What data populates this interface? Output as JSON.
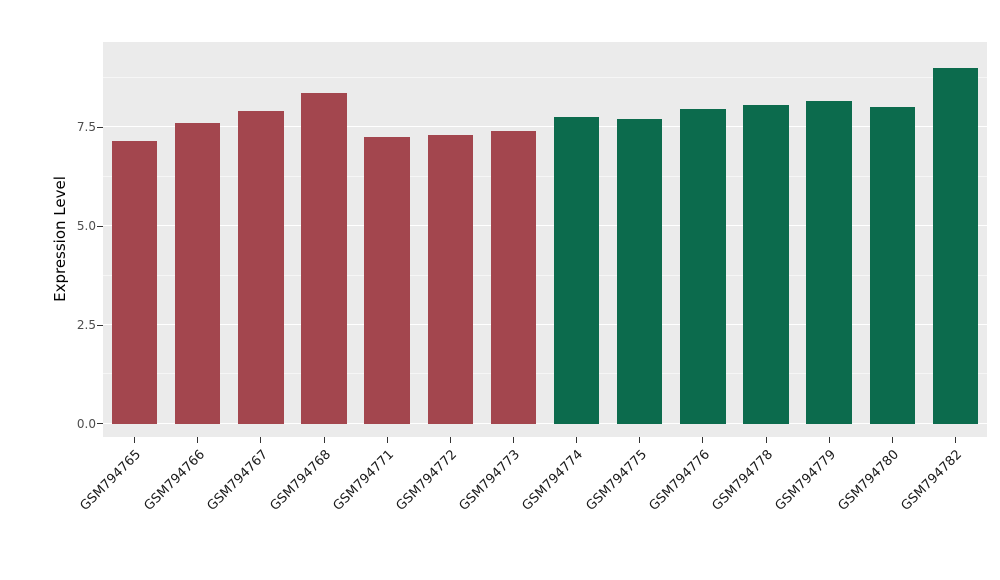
{
  "figure": {
    "background": "#FFFFFF",
    "panel_background": "#EBEBEB",
    "grid_color": "#FFFFFF"
  },
  "chart_data": {
    "type": "bar",
    "title": "",
    "xlabel": "",
    "ylabel": "Expression Level",
    "categories": [
      "GSM794765",
      "GSM794766",
      "GSM794767",
      "GSM794768",
      "GSM794771",
      "GSM794772",
      "GSM794773",
      "GSM794774",
      "GSM794775",
      "GSM794776",
      "GSM794778",
      "GSM794779",
      "GSM794780",
      "GSM794782"
    ],
    "values": [
      7.15,
      7.6,
      7.9,
      8.35,
      7.25,
      7.3,
      7.4,
      7.75,
      7.7,
      7.95,
      8.05,
      8.15,
      8.0,
      9.0
    ],
    "bar_colors": [
      "#A3464E",
      "#A3464E",
      "#A3464E",
      "#A3464E",
      "#A3464E",
      "#A3464E",
      "#A3464E",
      "#0C6B4D",
      "#0C6B4D",
      "#0C6B4D",
      "#0C6B4D",
      "#0C6B4D",
      "#0C6B4D",
      "#0C6B4D"
    ],
    "yticks": [
      0,
      2.5,
      5,
      7.5
    ],
    "ytick_labels": [
      "0.0",
      "2.5",
      "5.0",
      "7.5"
    ],
    "minor_yticks": [
      1.25,
      3.75,
      6.25,
      8.75
    ],
    "ylim": [
      -0.33,
      9.65
    ],
    "grid": true,
    "legend": "none"
  }
}
